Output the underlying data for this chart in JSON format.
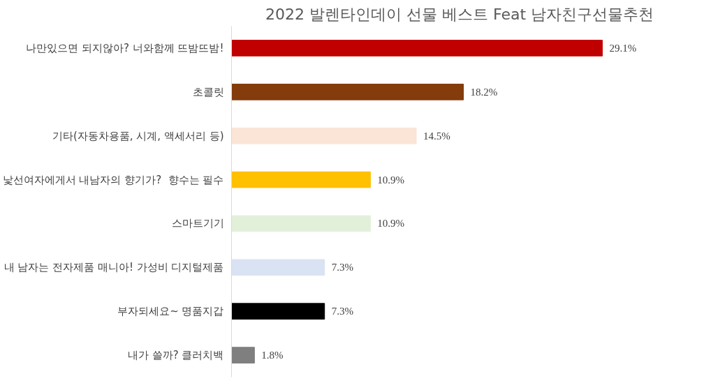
{
  "chart_data": {
    "type": "bar",
    "orientation": "horizontal",
    "title": "2022 발렌타인데이 선물 베스트 Feat 남자친구선물추천",
    "categories": [
      "나만있으면 되지않아? 너와함께 뜨밤뜨밤!",
      "초콜릿",
      "기타(자동차용품, 시계, 액세서리 등)",
      "낯선여자에게서 내남자의 향기가?  향수는 필수",
      "스마트기기",
      "내 남자는 전자제품 매니아! 가성비 디지털제품",
      "부자되세요~ 명품지갑",
      "내가 쓸까? 클러치백"
    ],
    "values": [
      29.1,
      18.2,
      14.5,
      10.9,
      10.9,
      7.3,
      7.3,
      1.8
    ],
    "colors": [
      "#c00000",
      "#843c0c",
      "#fbe5d6",
      "#ffc000",
      "#e2f0d9",
      "#dae3f3",
      "#000000",
      "#7f7f7f"
    ],
    "value_labels": [
      "29.1%",
      "18.2%",
      "14.5%",
      "10.9%",
      "10.9%",
      "7.3%",
      "7.3%",
      "1.8%"
    ],
    "grid": false
  }
}
